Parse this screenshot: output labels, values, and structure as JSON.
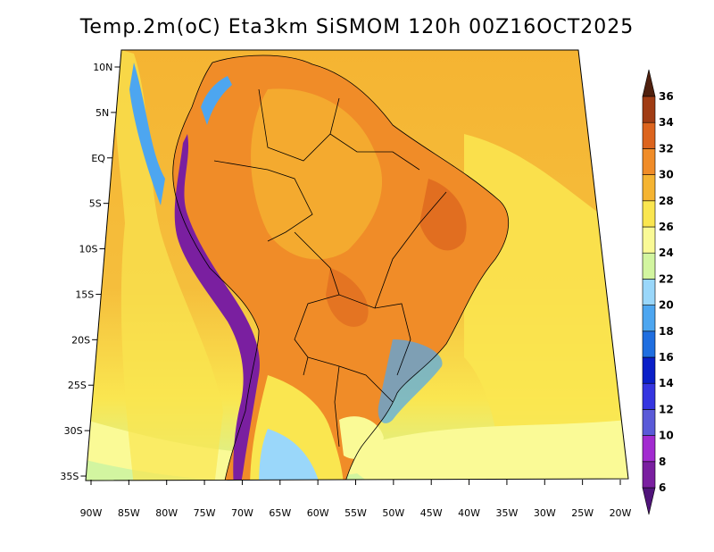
{
  "title": "Temp.2m(oC) Eta3km SiSMOM 120h 00Z16OCT2025",
  "map": {
    "lon_labels": [
      "90W",
      "85W",
      "80W",
      "75W",
      "70W",
      "65W",
      "60W",
      "55W",
      "50W",
      "45W",
      "40W",
      "35W",
      "30W",
      "25W",
      "20W"
    ],
    "lat_labels": [
      "10N",
      "5N",
      "EQ",
      "5S",
      "10S",
      "15S",
      "20S",
      "25S",
      "30S",
      "35S"
    ],
    "variable": "2 m temperature",
    "units": "oC"
  },
  "colorbar": {
    "labels": [
      "6",
      "8",
      "10",
      "12",
      "14",
      "16",
      "18",
      "20",
      "22",
      "24",
      "26",
      "28",
      "30",
      "32",
      "34",
      "36"
    ],
    "colors": [
      "#7a1fa0",
      "#a22bd0",
      "#5a5ad8",
      "#3535e0",
      "#0a1fc8",
      "#1f6ee0",
      "#4da6f0",
      "#9ad7fa",
      "#d2f5a0",
      "#fafa96",
      "#fae650",
      "#f5b432",
      "#f08c28",
      "#dc641e",
      "#a03c14",
      "#6e2814"
    ],
    "arrow_low_color": "#50147a",
    "arrow_high_color": "#50200e"
  },
  "colors": {
    "ocean_warm": "#f5b432",
    "ocean_cool": "#fae650",
    "land_hot": "#f08c28",
    "andes": "#7a1fa0",
    "coast_line": "#000000"
  }
}
